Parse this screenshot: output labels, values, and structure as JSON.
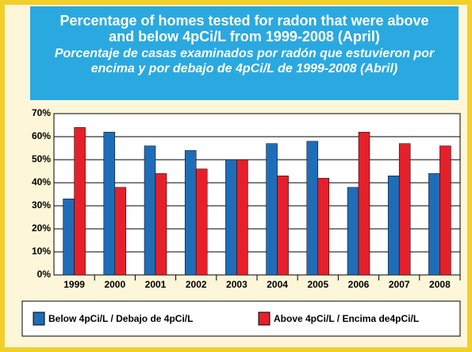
{
  "chart_data": {
    "type": "bar",
    "title": "Percentage of homes tested for radon that were above and below 4pCi/L from 1999-2008 (April)",
    "subtitle": "Porcentaje de casas examinados por radón que estuvieron por encima y por debajo de 4pCi/L de 1999-2008 (Abril)",
    "categories": [
      "1999",
      "2000",
      "2001",
      "2002",
      "2003",
      "2004",
      "2005",
      "2006",
      "2007",
      "2008"
    ],
    "series": [
      {
        "name": "Below 4pCi/L / Debajo de 4pCi/L",
        "color": "#1f6db8",
        "values": [
          33,
          62,
          56,
          54,
          50,
          57,
          58,
          38,
          43,
          44
        ]
      },
      {
        "name": "Above 4pCi/L / Encima de4pCi/L",
        "color": "#e5202a",
        "values": [
          64,
          38,
          44,
          46,
          50,
          43,
          42,
          62,
          57,
          56
        ]
      }
    ],
    "ylim": [
      0,
      70
    ],
    "yticks": [
      {
        "value": 0,
        "label": "0%"
      },
      {
        "value": 10,
        "label": "10%"
      },
      {
        "value": 20,
        "label": "20%"
      },
      {
        "value": 30,
        "label": "30%"
      },
      {
        "value": 40,
        "label": "40%"
      },
      {
        "value": 50,
        "label": "50%"
      },
      {
        "value": 60,
        "label": "60%"
      },
      {
        "value": 70,
        "label": "70%"
      }
    ],
    "grid": true
  }
}
